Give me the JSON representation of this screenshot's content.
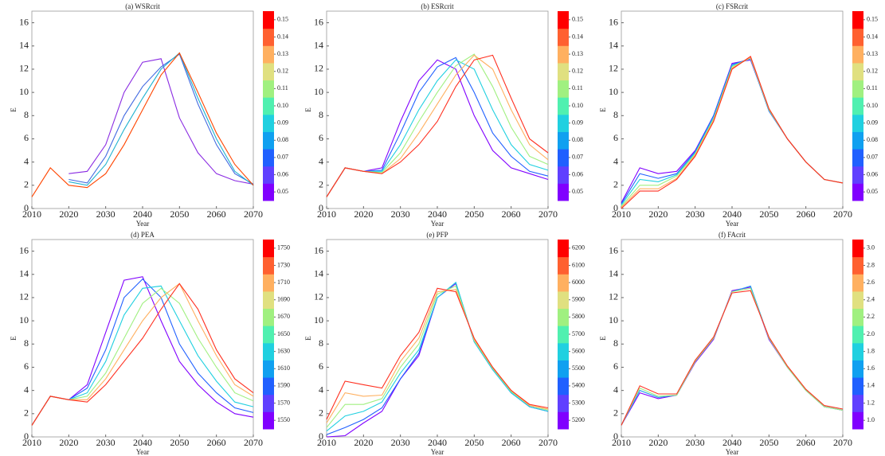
{
  "chart_data": [
    {
      "type": "line",
      "title": "(a) WSRcrit",
      "xlabel": "Year",
      "ylabel": "E",
      "x": [
        2010,
        2015,
        2020,
        2025,
        2030,
        2035,
        2040,
        2045,
        2050,
        2055,
        2060,
        2065,
        2070
      ],
      "xlim": [
        2010,
        2070
      ],
      "xticks": [
        2010,
        2020,
        2030,
        2040,
        2050,
        2060,
        2070
      ],
      "ylim": [
        0,
        17
      ],
      "yticks": [
        0,
        2,
        4,
        6,
        8,
        10,
        12,
        14,
        16
      ],
      "series": [
        {
          "color": "#8a2be2",
          "values": [
            null,
            null,
            3.0,
            3.2,
            5.5,
            10,
            12.6,
            12.9,
            7.8,
            4.8,
            3.0,
            2.4,
            2.1
          ]
        },
        {
          "color": "#4169e1",
          "values": [
            null,
            null,
            2.5,
            2.2,
            4.5,
            8,
            10.5,
            12.2,
            13.3,
            9,
            5.5,
            3.0,
            2.1
          ]
        },
        {
          "color": "#20b2d0",
          "values": [
            null,
            null,
            2.3,
            2.0,
            3.8,
            6.8,
            9.5,
            12,
            13.4,
            9.5,
            6,
            3.2,
            2.0
          ]
        },
        {
          "color": "#ff4500",
          "values": [
            1.0,
            3.5,
            2.0,
            1.8,
            3.0,
            5.5,
            8.5,
            11.5,
            13.4,
            10,
            6.5,
            3.8,
            2.0
          ]
        }
      ],
      "colorbar_lim": [
        0.045,
        0.155
      ],
      "colorbar_colors": [
        "#8000ff",
        "#6040ff",
        "#2060ff",
        "#10a0f0",
        "#20d0e0",
        "#50f0b0",
        "#a0f080",
        "#e0e080",
        "#ffb060",
        "#ff6030",
        "#ff0000"
      ],
      "colorbar_ticks": [
        0.05,
        0.06,
        0.07,
        0.08,
        0.09,
        {
          "value": 0.1,
          "label": "0.10"
        },
        0.11,
        0.12,
        0.13,
        0.14,
        0.15
      ]
    },
    {
      "type": "line",
      "title": "(b) ESRcrit",
      "xlabel": "Year",
      "ylabel": "E",
      "x": [
        2010,
        2015,
        2020,
        2025,
        2030,
        2035,
        2040,
        2045,
        2050,
        2055,
        2060,
        2065,
        2070
      ],
      "xlim": [
        2010,
        2070
      ],
      "xticks": [
        2010,
        2020,
        2030,
        2040,
        2050,
        2060,
        2070
      ],
      "ylim": [
        0,
        17
      ],
      "yticks": [
        0,
        2,
        4,
        6,
        8,
        10,
        12,
        14,
        16
      ],
      "series": [
        {
          "color": "#8000ff",
          "values": [
            1.0,
            3.5,
            3.2,
            3.5,
            7.5,
            11,
            12.8,
            12.0,
            8.0,
            5.0,
            3.5,
            3.0,
            2.5
          ]
        },
        {
          "color": "#2060ff",
          "values": [
            1.0,
            3.5,
            3.2,
            3.3,
            6.5,
            10,
            12.2,
            13.0,
            10.0,
            6.5,
            4.5,
            3.2,
            2.8
          ]
        },
        {
          "color": "#20d0e0",
          "values": [
            1.0,
            3.5,
            3.2,
            3.2,
            5.5,
            8.5,
            11,
            12.8,
            12.0,
            8.5,
            5.5,
            3.8,
            3.3
          ]
        },
        {
          "color": "#a0f080",
          "values": [
            1.0,
            3.5,
            3.2,
            3.1,
            4.8,
            7.5,
            10,
            12.3,
            13.3,
            10.5,
            7,
            4.5,
            3.8
          ]
        },
        {
          "color": "#ffb060",
          "values": [
            1.0,
            3.5,
            3.2,
            3.0,
            4.3,
            6.5,
            9,
            11.5,
            13.2,
            12,
            8.5,
            5.5,
            4.2
          ]
        },
        {
          "color": "#ff3020",
          "values": [
            1.0,
            3.5,
            3.2,
            3.0,
            4.0,
            5.5,
            7.5,
            10.5,
            12.8,
            13.2,
            9.5,
            6,
            4.8
          ]
        }
      ],
      "colorbar_lim": [
        0.045,
        0.155
      ],
      "colorbar_colors": [
        "#8000ff",
        "#6040ff",
        "#2060ff",
        "#10a0f0",
        "#20d0e0",
        "#50f0b0",
        "#a0f080",
        "#e0e080",
        "#ffb060",
        "#ff6030",
        "#ff0000"
      ],
      "colorbar_ticks": [
        0.05,
        0.06,
        0.07,
        0.08,
        0.09,
        {
          "value": 0.1,
          "label": "0.10"
        },
        0.11,
        0.12,
        0.13,
        0.14,
        0.15
      ]
    },
    {
      "type": "line",
      "title": "(c) FSRcrit",
      "xlabel": "Year",
      "ylabel": "E",
      "x": [
        2010,
        2015,
        2020,
        2025,
        2030,
        2035,
        2040,
        2045,
        2050,
        2055,
        2060,
        2065,
        2070
      ],
      "xlim": [
        2010,
        2070
      ],
      "xticks": [
        2010,
        2020,
        2030,
        2040,
        2050,
        2060,
        2070
      ],
      "ylim": [
        0,
        17
      ],
      "yticks": [
        0,
        2,
        4,
        6,
        8,
        10,
        12,
        14,
        16
      ],
      "series": [
        {
          "color": "#8000ff",
          "values": [
            0.5,
            3.5,
            3.0,
            3.2,
            5.0,
            8.0,
            12.5,
            12.8,
            8.5,
            6.0,
            4.0,
            2.5,
            2.2
          ]
        },
        {
          "color": "#2060ff",
          "values": [
            0.4,
            3.0,
            2.6,
            3.0,
            4.9,
            8.0,
            12.4,
            12.9,
            8.4,
            6.0,
            4.0,
            2.5,
            2.2
          ]
        },
        {
          "color": "#20d0e0",
          "values": [
            0.3,
            2.5,
            2.3,
            2.9,
            4.8,
            7.8,
            12.3,
            12.9,
            8.5,
            6.0,
            4.0,
            2.5,
            2.2
          ]
        },
        {
          "color": "#a0f080",
          "values": [
            0.2,
            2.0,
            2.0,
            2.8,
            4.7,
            7.7,
            12.2,
            13.0,
            8.5,
            6.0,
            4.0,
            2.5,
            2.2
          ]
        },
        {
          "color": "#ffb060",
          "values": [
            0.1,
            1.7,
            1.7,
            2.6,
            4.6,
            7.6,
            12.1,
            13.0,
            8.6,
            6.0,
            4.0,
            2.5,
            2.2
          ]
        },
        {
          "color": "#ff3020",
          "values": [
            0,
            1.5,
            1.5,
            2.5,
            4.5,
            7.5,
            12.0,
            13.1,
            8.6,
            6.0,
            4.0,
            2.5,
            2.2
          ]
        }
      ],
      "colorbar_lim": [
        0.045,
        0.155
      ],
      "colorbar_colors": [
        "#8000ff",
        "#6040ff",
        "#2060ff",
        "#10a0f0",
        "#20d0e0",
        "#50f0b0",
        "#a0f080",
        "#e0e080",
        "#ffb060",
        "#ff6030",
        "#ff0000"
      ],
      "colorbar_ticks": [
        0.05,
        0.06,
        0.07,
        0.08,
        0.09,
        {
          "value": 0.1,
          "label": "0.10"
        },
        0.11,
        0.12,
        0.13,
        0.14,
        0.15
      ]
    },
    {
      "type": "line",
      "title": "(d) PEA",
      "xlabel": "Year",
      "ylabel": "E",
      "x": [
        2010,
        2015,
        2020,
        2025,
        2030,
        2035,
        2040,
        2045,
        2050,
        2055,
        2060,
        2065,
        2070
      ],
      "xlim": [
        2010,
        2070
      ],
      "xticks": [
        2010,
        2020,
        2030,
        2040,
        2050,
        2060,
        2070
      ],
      "ylim": [
        0,
        17
      ],
      "yticks": [
        0,
        2,
        4,
        6,
        8,
        10,
        12,
        14,
        16
      ],
      "series": [
        {
          "color": "#8000ff",
          "values": [
            1.0,
            3.5,
            3.2,
            4.5,
            9.0,
            13.5,
            13.8,
            10.0,
            6.5,
            4.5,
            3.0,
            2.0,
            1.7
          ]
        },
        {
          "color": "#2060ff",
          "values": [
            1.0,
            3.5,
            3.2,
            4.2,
            7.5,
            12.0,
            13.6,
            12.0,
            8.0,
            5.5,
            3.8,
            2.5,
            2.1
          ]
        },
        {
          "color": "#20d0e0",
          "values": [
            1.0,
            3.5,
            3.2,
            3.8,
            6.5,
            10.5,
            12.8,
            13.0,
            10.0,
            7.0,
            4.8,
            3.0,
            2.6
          ]
        },
        {
          "color": "#a0f080",
          "values": [
            1.0,
            3.5,
            3.2,
            3.5,
            5.5,
            8.5,
            11.5,
            12.8,
            11.5,
            8.5,
            6.0,
            3.8,
            3.1
          ]
        },
        {
          "color": "#ffb060",
          "values": [
            1.0,
            3.5,
            3.2,
            3.2,
            5.0,
            7.5,
            10.0,
            12.0,
            13.2,
            10.0,
            7.0,
            4.5,
            3.5
          ]
        },
        {
          "color": "#ff3020",
          "values": [
            1.0,
            3.5,
            3.2,
            3.0,
            4.5,
            6.5,
            8.5,
            11.0,
            13.2,
            11.0,
            7.5,
            5.0,
            3.8
          ]
        }
      ],
      "colorbar_lim": [
        1540,
        1760
      ],
      "colorbar_colors": [
        "#8000ff",
        "#6040ff",
        "#2060ff",
        "#10a0f0",
        "#20d0e0",
        "#50f0b0",
        "#a0f080",
        "#e0e080",
        "#ffb060",
        "#ff6030",
        "#ff0000"
      ],
      "colorbar_ticks": [
        1550,
        1570,
        1590,
        1610,
        1630,
        1650,
        1670,
        1690,
        1710,
        1730,
        1750
      ]
    },
    {
      "type": "line",
      "title": "(e) PFP",
      "xlabel": "Year",
      "ylabel": "E",
      "x": [
        2010,
        2015,
        2020,
        2025,
        2030,
        2035,
        2040,
        2045,
        2050,
        2055,
        2060,
        2065,
        2070
      ],
      "xlim": [
        2010,
        2070
      ],
      "xticks": [
        2010,
        2020,
        2030,
        2040,
        2050,
        2060,
        2070
      ],
      "ylim": [
        0,
        17
      ],
      "yticks": [
        0,
        2,
        4,
        6,
        8,
        10,
        12,
        14,
        16
      ],
      "series": [
        {
          "color": "#8000ff",
          "values": [
            0,
            0.1,
            1.2,
            2.2,
            5.0,
            7.0,
            12.0,
            13.2,
            8.2,
            5.8,
            3.8,
            2.6,
            2.2
          ]
        },
        {
          "color": "#2060ff",
          "values": [
            0.2,
            0.8,
            1.5,
            2.5,
            5.0,
            7.2,
            12.0,
            13.3,
            8.2,
            5.8,
            3.8,
            2.6,
            2.2
          ]
        },
        {
          "color": "#20d0e0",
          "values": [
            0.5,
            1.8,
            2.2,
            3.0,
            5.5,
            7.5,
            12.0,
            13.3,
            8.2,
            5.8,
            3.8,
            2.6,
            2.2
          ]
        },
        {
          "color": "#a0f080",
          "values": [
            0.8,
            2.8,
            2.8,
            3.3,
            6.0,
            8.0,
            12.3,
            13.0,
            8.3,
            5.9,
            3.9,
            2.7,
            2.3
          ]
        },
        {
          "color": "#ffb060",
          "values": [
            1.2,
            3.8,
            3.5,
            3.6,
            6.5,
            8.5,
            12.5,
            12.7,
            8.4,
            6.0,
            4.0,
            2.7,
            2.4
          ]
        },
        {
          "color": "#ff3020",
          "values": [
            1.5,
            4.8,
            4.5,
            4.2,
            7.0,
            9.0,
            12.8,
            12.5,
            8.5,
            6.0,
            4.0,
            2.8,
            2.5
          ]
        }
      ],
      "colorbar_lim": [
        5150,
        6250
      ],
      "colorbar_colors": [
        "#8000ff",
        "#6040ff",
        "#2060ff",
        "#10a0f0",
        "#20d0e0",
        "#50f0b0",
        "#a0f080",
        "#e0e080",
        "#ffb060",
        "#ff6030",
        "#ff0000"
      ],
      "colorbar_ticks": [
        5200,
        5300,
        5400,
        5500,
        5600,
        5700,
        5800,
        5900,
        6000,
        6100,
        6200
      ]
    },
    {
      "type": "line",
      "title": "(f) FAcrit",
      "xlabel": "Year",
      "ylabel": "E",
      "x": [
        2010,
        2015,
        2020,
        2025,
        2030,
        2035,
        2040,
        2045,
        2050,
        2055,
        2060,
        2065,
        2070
      ],
      "xlim": [
        2010,
        2070
      ],
      "xticks": [
        2010,
        2020,
        2030,
        2040,
        2050,
        2060,
        2070
      ],
      "ylim": [
        0,
        17
      ],
      "yticks": [
        0,
        2,
        4,
        6,
        8,
        10,
        12,
        14,
        16
      ],
      "series": [
        {
          "color": "#8000ff",
          "values": [
            1.0,
            3.8,
            3.3,
            3.6,
            6.4,
            8.4,
            12.6,
            12.9,
            8.4,
            6.0,
            4.0,
            2.6,
            2.3
          ]
        },
        {
          "color": "#20a0f0",
          "values": [
            1.0,
            4.0,
            3.4,
            3.6,
            6.5,
            8.5,
            12.5,
            13.0,
            8.5,
            6.0,
            4.0,
            2.6,
            2.3
          ]
        },
        {
          "color": "#a0f080",
          "values": [
            1.0,
            4.2,
            3.5,
            3.6,
            6.5,
            8.5,
            12.5,
            12.8,
            8.5,
            6.0,
            4.0,
            2.6,
            2.3
          ]
        },
        {
          "color": "#ff3020",
          "values": [
            1.0,
            4.4,
            3.7,
            3.7,
            6.6,
            8.6,
            12.4,
            12.6,
            8.6,
            6.1,
            4.1,
            2.7,
            2.4
          ]
        }
      ],
      "colorbar_lim": [
        0.9,
        3.1
      ],
      "colorbar_colors": [
        "#8000ff",
        "#6040ff",
        "#2060ff",
        "#10a0f0",
        "#20d0e0",
        "#50f0b0",
        "#a0f080",
        "#e0e080",
        "#ffb060",
        "#ff6030",
        "#ff0000"
      ],
      "colorbar_ticks": [
        {
          "value": 1.0,
          "label": "1.0"
        },
        1.2,
        1.4,
        1.6,
        1.8,
        {
          "value": 2.0,
          "label": "2.0"
        },
        2.2,
        2.4,
        2.6,
        2.8,
        {
          "value": 3.0,
          "label": "3.0"
        }
      ]
    }
  ]
}
